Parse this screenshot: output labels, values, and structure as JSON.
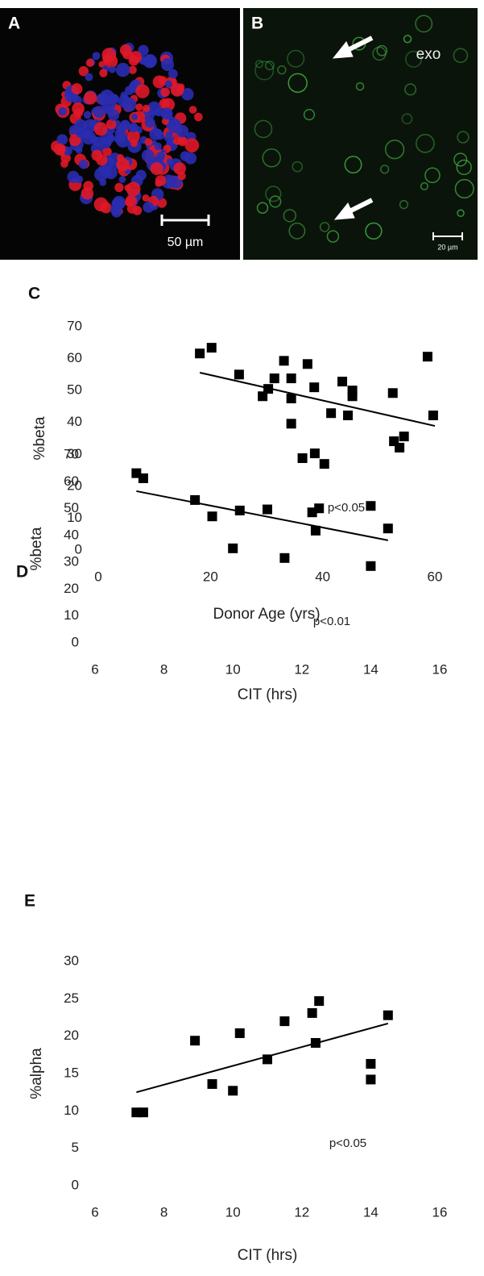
{
  "panels": [
    {
      "label": "A",
      "scale_bar": "50 µm"
    },
    {
      "label": "B",
      "annotation": "exo",
      "scale_bar": "20 µm"
    }
  ],
  "chart_data": [
    {
      "type": "scatter",
      "panel_label": "C",
      "y_label": "%beta",
      "x_label": "Donor Age (yrs)",
      "annotation": "p<0.05",
      "x": [
        18.1,
        20.2,
        25.1,
        29.3,
        30.3,
        31.4,
        33.1,
        34.4,
        34.4,
        34.4,
        36.4,
        37.3,
        38.5,
        38.6,
        40.3,
        41.5,
        43.5,
        44.5,
        45.3,
        45.3,
        52.5,
        52.7,
        53.7,
        54.5,
        58.7,
        59.7
      ],
      "values": [
        61.6,
        63.4,
        55.0,
        48.2,
        50.5,
        53.8,
        59.3,
        53.8,
        47.5,
        39.6,
        28.8,
        58.3,
        51.0,
        30.3,
        27.0,
        42.9,
        52.8,
        42.2,
        50.0,
        48.2,
        49.2,
        34.1,
        32.1,
        35.6,
        60.6,
        42.2
      ],
      "color": "#000000",
      "trendline": {
        "x": [
          18.1,
          60
        ],
        "y": [
          55.6,
          38.9
        ]
      },
      "xlim": [
        0,
        60
      ],
      "xticks": [
        0,
        20,
        40,
        60
      ],
      "ylim": [
        0,
        70
      ],
      "yticks": [
        0,
        10,
        20,
        30,
        40,
        50,
        60,
        70
      ]
    },
    {
      "type": "scatter",
      "panel_label": "D",
      "y_label": "%beta",
      "x_label": "CIT (hrs)",
      "annotation": "p<0.01",
      "x": [
        7.2,
        7.4,
        8.9,
        9.4,
        10.0,
        10.2,
        11.0,
        11.5,
        12.3,
        12.4,
        12.5,
        14.0,
        14.0,
        14.5
      ],
      "values": [
        63.2,
        61.3,
        53.2,
        47.1,
        35.2,
        49.3,
        49.7,
        31.6,
        48.6,
        41.8,
        50.1,
        51.0,
        28.6,
        42.6
      ],
      "color": "#000000",
      "trendline": {
        "x": [
          7.2,
          14.5
        ],
        "y": [
          56.5,
          38.2
        ]
      },
      "xlim": [
        6,
        16
      ],
      "xticks": [
        6,
        8,
        10,
        12,
        14,
        16
      ],
      "ylim": [
        0,
        70
      ],
      "yticks": [
        0,
        10,
        20,
        30,
        40,
        50,
        60,
        70
      ]
    },
    {
      "type": "scatter",
      "panel_label": "E",
      "y_label": "%alpha",
      "x_label": "CIT (hrs)",
      "annotation": "p<0.05",
      "x": [
        7.2,
        7.4,
        8.9,
        9.4,
        10.0,
        10.2,
        11.0,
        11.5,
        12.3,
        12.4,
        12.5,
        14.0,
        14.0,
        14.5
      ],
      "values": [
        9.8,
        9.8,
        19.4,
        13.6,
        12.7,
        20.4,
        16.9,
        22.0,
        23.1,
        19.1,
        24.7,
        16.3,
        14.2,
        22.8
      ],
      "color": "#000000",
      "trendline": {
        "x": [
          7.2,
          14.5
        ],
        "y": [
          12.5,
          21.7
        ]
      },
      "xlim": [
        6,
        16
      ],
      "xticks": [
        6,
        8,
        10,
        12,
        14,
        16
      ],
      "ylim": [
        0,
        30
      ],
      "yticks": [
        0,
        5,
        10,
        15,
        20,
        25,
        30
      ]
    }
  ]
}
